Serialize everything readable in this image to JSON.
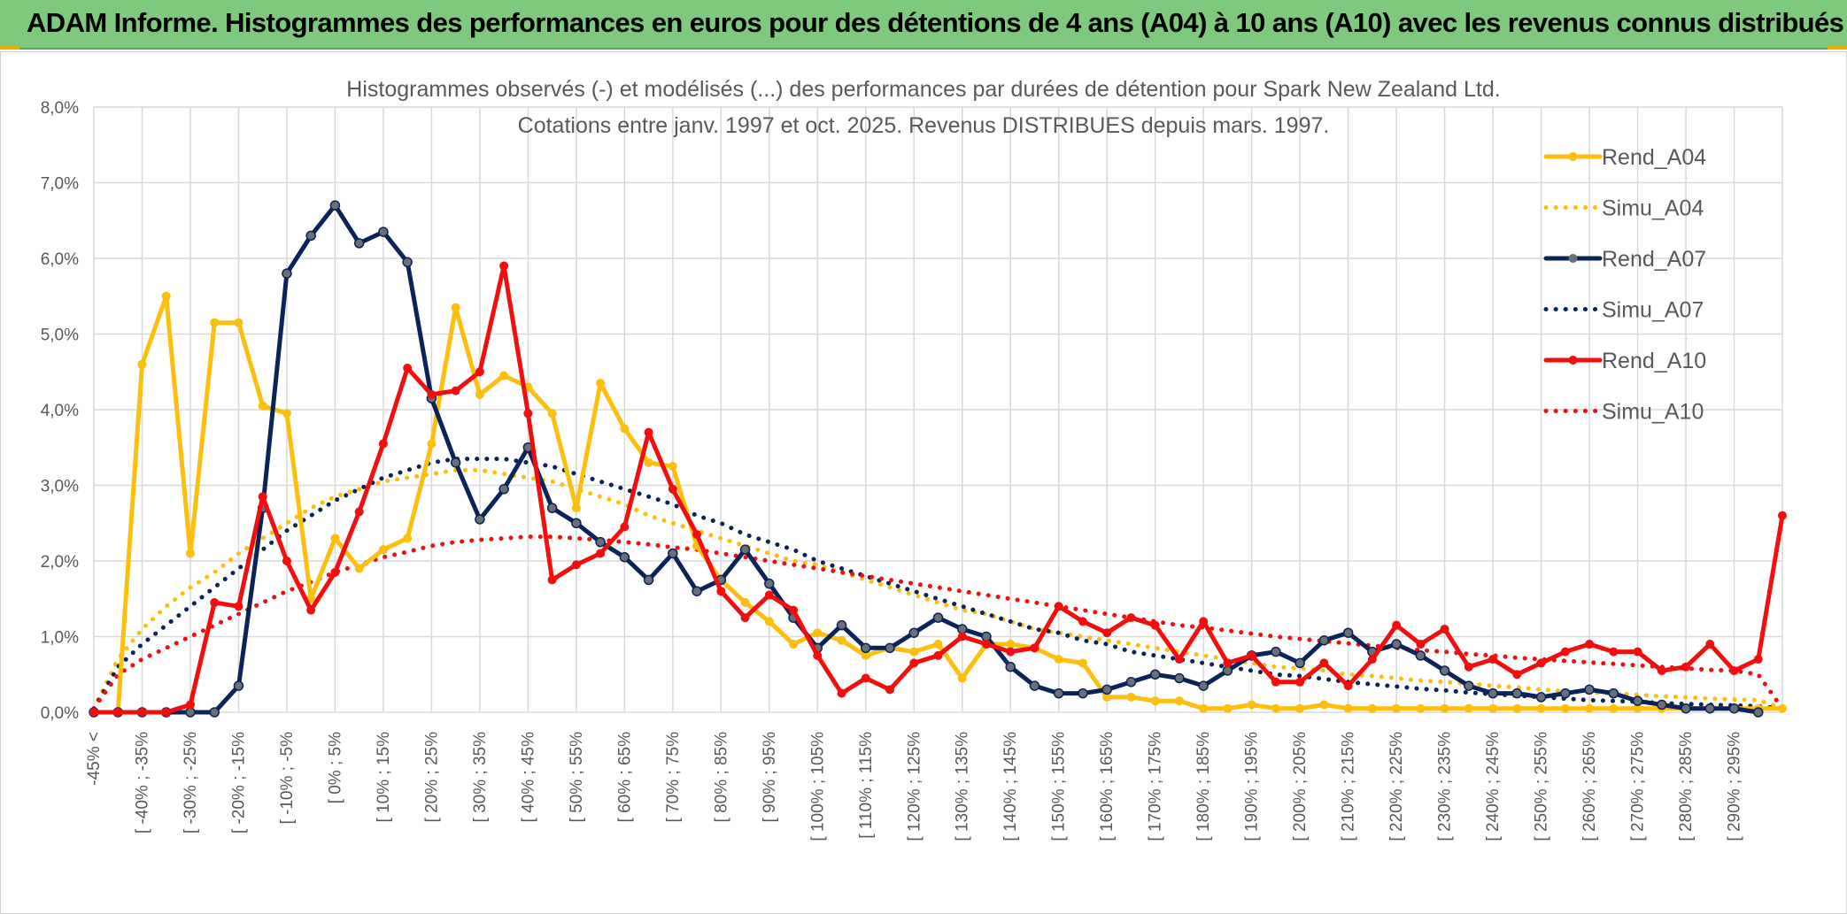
{
  "banner": {
    "title": "ADAM Informe. Histogrammes des performances en euros pour des détentions de 4 ans (A04) à 10 ans (A10) avec les revenus connus distribués"
  },
  "colors": {
    "banner_bg": "#7fc97f",
    "A04": "#fbbf0f",
    "A07": "#0b2356",
    "A10": "#f20e0e",
    "grid": "#d9d9d9",
    "marker_A07": "#6b6f78"
  },
  "chart_data": {
    "type": "line",
    "title": "Histogrammes observés (-) et modélisés (...) des performances par durées de détention pour Spark New Zealand Ltd.",
    "subtitle": "Cotations entre janv. 1997 et oct. 2025. Revenus DISTRIBUES depuis mars. 1997.",
    "ylim": [
      0,
      8
    ],
    "y_ticks": [
      "0,0%",
      "1,0%",
      "2,0%",
      "3,0%",
      "4,0%",
      "5,0%",
      "6,0%",
      "7,0%",
      "8,0%"
    ],
    "x_tick_labels": [
      "-45% <",
      "[ -40% ; -35%",
      "[ -30% ; -25%",
      "[ -20% ; -15%",
      "[ -10% ; -5%",
      "[ 0% ; 5%",
      "[ 10% ; 15%",
      "[ 20% ; 25%",
      "[ 30% ; 35%",
      "[ 40% ; 45%",
      "[ 50% ; 55%",
      "[ 60% ; 65%",
      "[ 70% ; 75%",
      "[ 80% ; 85%",
      "[ 90% ; 95%",
      "[ 100% ; 105%",
      "[ 110% ; 115%",
      "[ 120% ; 125%",
      "[ 130% ; 135%",
      "[ 140% ; 145%",
      "[ 150% ; 155%",
      "[ 160% ; 165%",
      "[ 170% ; 175%",
      "[ 180% ; 185%",
      "[ 190% ; 195%",
      "[ 200% ; 205%",
      "[ 210% ; 215%",
      "[ 220% ; 225%",
      "[ 230% ; 235%",
      "[ 240% ; 245%",
      "[ 250% ; 255%",
      "[ 260% ; 265%",
      "[ 270% ; 275%",
      "[ 280% ; 285%",
      "[ 290% ; 295%"
    ],
    "legend_position": "right",
    "grid": true,
    "series": [
      {
        "name": "Rend_A04",
        "style": "solid",
        "color": "#fbbf0f",
        "values": [
          0.0,
          0.0,
          4.6,
          5.5,
          2.1,
          5.15,
          5.15,
          4.05,
          3.95,
          1.5,
          2.3,
          1.9,
          2.15,
          2.3,
          3.55,
          5.35,
          4.2,
          4.45,
          4.3,
          3.95,
          2.7,
          4.35,
          3.75,
          3.3,
          3.25,
          2.2,
          1.75,
          1.45,
          1.2,
          0.9,
          1.05,
          0.95,
          0.75,
          0.85,
          0.8,
          0.9,
          0.45,
          0.9,
          0.9,
          0.85,
          0.7,
          0.65,
          0.2,
          0.2,
          0.15,
          0.15,
          0.05,
          0.05,
          0.1,
          0.05,
          0.05,
          0.1,
          0.05,
          0.05,
          0.05,
          0.05,
          0.05,
          0.05,
          0.05,
          0.05,
          0.05,
          0.05,
          0.05,
          0.05,
          0.05,
          0.05,
          0.05,
          0.05,
          0.05,
          0.05,
          0.05
        ]
      },
      {
        "name": "Simu_A04",
        "style": "dotted",
        "color": "#fbbf0f",
        "values": [
          0.05,
          0.7,
          1.1,
          1.4,
          1.65,
          1.85,
          2.1,
          2.3,
          2.5,
          2.7,
          2.85,
          2.95,
          3.05,
          3.1,
          3.15,
          3.2,
          3.2,
          3.15,
          3.1,
          3.05,
          2.95,
          2.85,
          2.75,
          2.6,
          2.5,
          2.4,
          2.3,
          2.2,
          2.1,
          2.0,
          1.95,
          1.85,
          1.75,
          1.65,
          1.55,
          1.45,
          1.35,
          1.3,
          1.2,
          1.1,
          1.05,
          1.0,
          0.95,
          0.9,
          0.85,
          0.8,
          0.75,
          0.7,
          0.65,
          0.6,
          0.58,
          0.55,
          0.5,
          0.48,
          0.45,
          0.42,
          0.4,
          0.38,
          0.35,
          0.33,
          0.3,
          0.28,
          0.26,
          0.25,
          0.23,
          0.21,
          0.2,
          0.18,
          0.17,
          0.16,
          0.05
        ]
      },
      {
        "name": "Rend_A07",
        "style": "solid",
        "color": "#0b2356",
        "values": [
          0.0,
          0.0,
          0.0,
          0.0,
          0.0,
          0.0,
          0.35,
          2.7,
          5.8,
          6.3,
          6.7,
          6.2,
          6.35,
          5.95,
          4.15,
          3.3,
          2.55,
          2.95,
          3.5,
          2.7,
          2.5,
          2.25,
          2.05,
          1.75,
          2.1,
          1.6,
          1.75,
          2.15,
          1.7,
          1.25,
          0.85,
          1.15,
          0.85,
          0.85,
          1.05,
          1.25,
          1.1,
          1.0,
          0.6,
          0.35,
          0.25,
          0.25,
          0.3,
          0.4,
          0.5,
          0.45,
          0.35,
          0.55,
          0.75,
          0.8,
          0.65,
          0.95,
          1.05,
          0.8,
          0.9,
          0.75,
          0.55,
          0.35,
          0.25,
          0.25,
          0.2,
          0.25,
          0.3,
          0.25,
          0.15,
          0.1,
          0.05,
          0.05,
          0.05,
          0.0
        ]
      },
      {
        "name": "Simu_A07",
        "style": "dotted",
        "color": "#0b2356",
        "values": [
          0.05,
          0.6,
          0.9,
          1.15,
          1.4,
          1.65,
          1.9,
          2.15,
          2.4,
          2.6,
          2.8,
          2.95,
          3.1,
          3.2,
          3.3,
          3.35,
          3.35,
          3.35,
          3.3,
          3.25,
          3.15,
          3.05,
          2.95,
          2.85,
          2.75,
          2.6,
          2.5,
          2.35,
          2.25,
          2.15,
          2.0,
          1.9,
          1.8,
          1.7,
          1.6,
          1.5,
          1.4,
          1.3,
          1.2,
          1.1,
          1.05,
          0.95,
          0.9,
          0.8,
          0.75,
          0.7,
          0.65,
          0.6,
          0.55,
          0.5,
          0.48,
          0.44,
          0.4,
          0.37,
          0.34,
          0.31,
          0.29,
          0.26,
          0.24,
          0.22,
          0.2,
          0.18,
          0.16,
          0.15,
          0.14,
          0.12,
          0.11,
          0.1,
          0.09,
          0.08,
          0.05
        ]
      },
      {
        "name": "Rend_A10",
        "style": "solid",
        "color": "#f20e0e",
        "values": [
          0.0,
          0.0,
          0.0,
          0.0,
          0.1,
          1.45,
          1.4,
          2.85,
          2.0,
          1.35,
          1.85,
          2.65,
          3.55,
          4.55,
          4.2,
          4.25,
          4.5,
          5.9,
          3.95,
          1.75,
          1.95,
          2.1,
          2.45,
          3.7,
          2.95,
          2.35,
          1.6,
          1.25,
          1.55,
          1.35,
          0.75,
          0.25,
          0.45,
          0.3,
          0.65,
          0.75,
          1.0,
          0.9,
          0.8,
          0.85,
          1.4,
          1.2,
          1.05,
          1.25,
          1.15,
          0.7,
          1.2,
          0.65,
          0.75,
          0.4,
          0.4,
          0.65,
          0.35,
          0.7,
          1.15,
          0.9,
          1.1,
          0.6,
          0.7,
          0.5,
          0.65,
          0.8,
          0.9,
          0.8,
          0.8,
          0.55,
          0.6,
          0.9,
          0.55,
          0.7,
          2.6
        ]
      },
      {
        "name": "Simu_A10",
        "style": "dotted",
        "color": "#f20e0e",
        "values": [
          0.05,
          0.5,
          0.7,
          0.85,
          1.0,
          1.15,
          1.3,
          1.45,
          1.6,
          1.72,
          1.85,
          1.95,
          2.05,
          2.12,
          2.2,
          2.25,
          2.28,
          2.3,
          2.32,
          2.32,
          2.3,
          2.28,
          2.25,
          2.22,
          2.18,
          2.15,
          2.1,
          2.05,
          2.0,
          1.95,
          1.9,
          1.85,
          1.8,
          1.75,
          1.7,
          1.65,
          1.6,
          1.55,
          1.5,
          1.45,
          1.4,
          1.35,
          1.3,
          1.25,
          1.2,
          1.15,
          1.12,
          1.08,
          1.04,
          1.0,
          0.97,
          0.94,
          0.91,
          0.88,
          0.85,
          0.82,
          0.8,
          0.77,
          0.75,
          0.72,
          0.7,
          0.68,
          0.66,
          0.64,
          0.62,
          0.6,
          0.58,
          0.56,
          0.55,
          0.5,
          0.05
        ]
      }
    ]
  }
}
